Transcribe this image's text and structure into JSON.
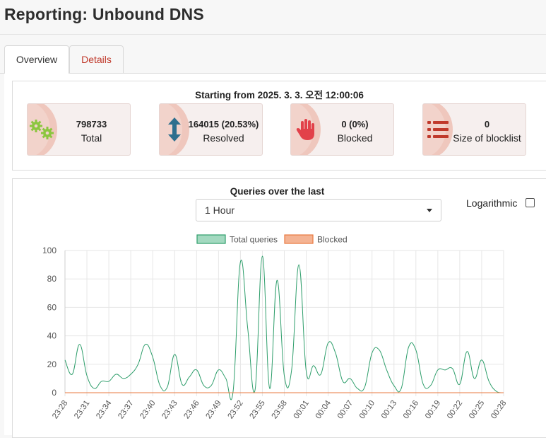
{
  "page": {
    "title": "Reporting: Unbound DNS"
  },
  "tabs": [
    {
      "label": "Overview",
      "active": true
    },
    {
      "label": "Details",
      "active": false
    }
  ],
  "stats": {
    "start_text": "Starting from 2025. 3. 3. 오전 12:00:06",
    "cards": [
      {
        "value": "798733",
        "label": "Total",
        "icon": "gears-icon",
        "icon_color": "#8cc63f"
      },
      {
        "value": "164015 (20.53%)",
        "label": "Resolved",
        "icon": "vertical-arrows-icon",
        "icon_color": "#2e6f8e"
      },
      {
        "value": "0 (0%)",
        "label": "Blocked",
        "icon": "hand-stop-icon",
        "icon_color": "#e2414a"
      },
      {
        "value": "0",
        "label": "Size of blocklist",
        "icon": "list-icon",
        "icon_color": "#c0392b"
      }
    ]
  },
  "chart_panel": {
    "title": "Queries over the last",
    "period_select": {
      "value": "1 Hour"
    },
    "logarithmic_label": "Logarithmic",
    "logarithmic_checked": false
  },
  "chart_data": {
    "type": "line",
    "legend_position": "top",
    "grid": true,
    "ylim": [
      0,
      100
    ],
    "yticks": [
      0,
      20,
      40,
      60,
      80,
      100
    ],
    "x": [
      "23:28",
      "23:29",
      "23:30",
      "23:31",
      "23:32",
      "23:33",
      "23:34",
      "23:35",
      "23:36",
      "23:37",
      "23:38",
      "23:39",
      "23:40",
      "23:41",
      "23:42",
      "23:43",
      "23:44",
      "23:45",
      "23:46",
      "23:47",
      "23:48",
      "23:49",
      "23:50",
      "23:51",
      "23:52",
      "23:53",
      "23:54",
      "23:55",
      "23:56",
      "23:57",
      "23:58",
      "23:59",
      "00:00",
      "00:01",
      "00:02",
      "00:03",
      "00:04",
      "00:05",
      "00:06",
      "00:07",
      "00:08",
      "00:09",
      "00:10",
      "00:11",
      "00:12",
      "00:13",
      "00:14",
      "00:15",
      "00:16",
      "00:17",
      "00:18",
      "00:19",
      "00:20",
      "00:21",
      "00:22",
      "00:23",
      "00:24",
      "00:25",
      "00:26",
      "00:27",
      "00:28"
    ],
    "xtick_labels": [
      "23:28",
      "23:31",
      "23:34",
      "23:37",
      "23:40",
      "23:43",
      "23:46",
      "23:49",
      "23:52",
      "23:55",
      "23:58",
      "00:01",
      "00:04",
      "00:07",
      "00:10",
      "00:13",
      "00:16",
      "00:19",
      "00:22",
      "00:25",
      "00:28"
    ],
    "series": [
      {
        "name": "Total queries",
        "color": "#2e9e6b",
        "fill": "#a3d9c0",
        "values": [
          23,
          13,
          34,
          12,
          3,
          8,
          8,
          13,
          10,
          13,
          20,
          34,
          25,
          5,
          4,
          27,
          6,
          11,
          16,
          5,
          5,
          16,
          10,
          1,
          92,
          45,
          2,
          96,
          3,
          79,
          12,
          16,
          90,
          15,
          19,
          13,
          35,
          28,
          8,
          10,
          3,
          4,
          28,
          30,
          16,
          5,
          3,
          32,
          30,
          6,
          5,
          16,
          16,
          17,
          6,
          29,
          10,
          23,
          8,
          1,
          0
        ]
      },
      {
        "name": "Blocked",
        "color": "#e8783f",
        "fill": "#f4b393",
        "values": [
          0,
          0,
          0,
          0,
          0,
          0,
          0,
          0,
          0,
          0,
          0,
          0,
          0,
          0,
          0,
          0,
          0,
          0,
          0,
          0,
          0,
          0,
          0,
          0,
          0,
          0,
          0,
          0,
          0,
          0,
          0,
          0,
          0,
          0,
          0,
          0,
          0,
          0,
          0,
          0,
          0,
          0,
          0,
          0,
          0,
          0,
          0,
          0,
          0,
          0,
          0,
          0,
          0,
          0,
          0,
          0,
          0,
          0,
          0,
          0,
          0
        ]
      }
    ]
  }
}
